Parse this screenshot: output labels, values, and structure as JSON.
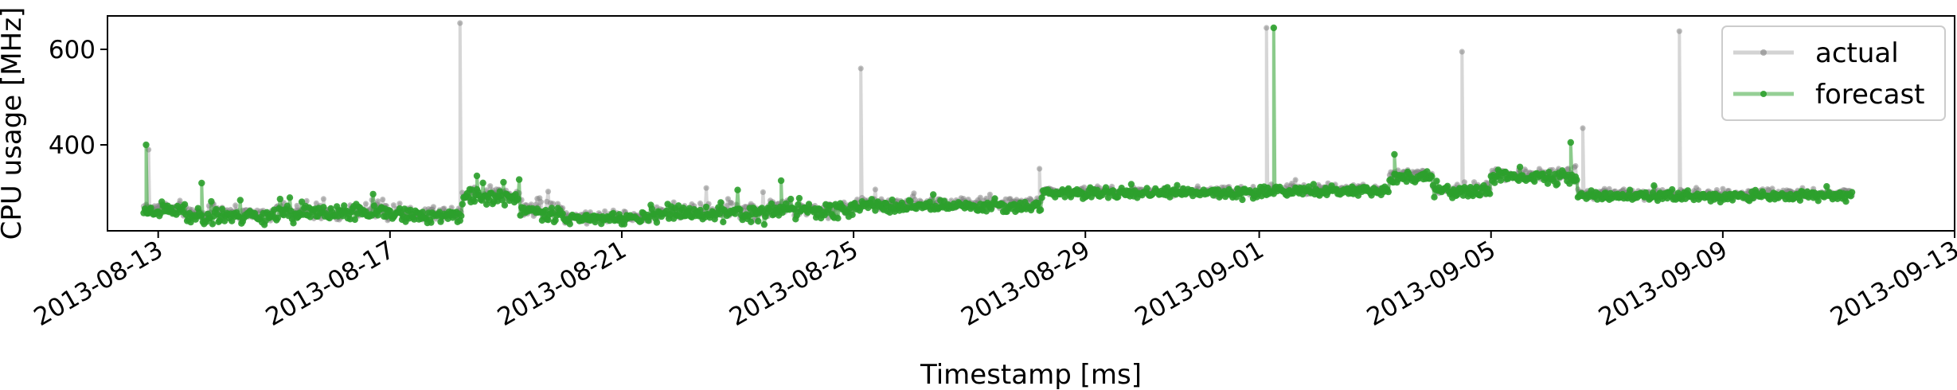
{
  "chart_data": {
    "type": "line",
    "title": "",
    "xlabel": "Timestamp [ms]",
    "ylabel": "CPU usage [MHz]",
    "xlim": [
      "2013-08-12T03:00",
      "2013-09-13T00:00"
    ],
    "ylim": [
      220,
      670
    ],
    "x_ticks": [
      "2013-08-13",
      "2013-08-17",
      "2013-08-21",
      "2013-08-25",
      "2013-08-29",
      "2013-09-01",
      "2013-09-05",
      "2013-09-09",
      "2013-09-13"
    ],
    "y_ticks": [
      400,
      600
    ],
    "grid": false,
    "legend_position": "top-right",
    "series": [
      {
        "name": "actual",
        "color": "#808080",
        "segments": [
          {
            "start": "2013-08-12T18:00",
            "end": "2013-08-13T12:00",
            "base": 268,
            "spread": 20
          },
          {
            "start": "2013-08-13T12:00",
            "end": "2013-08-15T00:00",
            "base": 258,
            "spread": 26
          },
          {
            "start": "2013-08-15T00:00",
            "end": "2013-08-17T00:00",
            "base": 262,
            "spread": 24
          },
          {
            "start": "2013-08-17T00:00",
            "end": "2013-08-18T06:00",
            "base": 258,
            "spread": 24
          },
          {
            "start": "2013-08-18T06:00",
            "end": "2013-08-19T06:00",
            "base": 298,
            "spread": 26
          },
          {
            "start": "2013-08-19T06:00",
            "end": "2013-08-20T00:00",
            "base": 266,
            "spread": 26
          },
          {
            "start": "2013-08-20T00:00",
            "end": "2013-08-21T12:00",
            "base": 250,
            "spread": 18
          },
          {
            "start": "2013-08-21T12:00",
            "end": "2013-08-23T12:00",
            "base": 262,
            "spread": 26
          },
          {
            "start": "2013-08-23T12:00",
            "end": "2013-08-25T00:00",
            "base": 268,
            "spread": 24
          },
          {
            "start": "2013-08-25T00:00",
            "end": "2013-08-28T06:00",
            "base": 278,
            "spread": 18
          },
          {
            "start": "2013-08-28T06:00",
            "end": "2013-09-01T00:00",
            "base": 303,
            "spread": 14
          },
          {
            "start": "2013-09-01T00:00",
            "end": "2013-09-03T06:00",
            "base": 308,
            "spread": 14
          },
          {
            "start": "2013-09-03T06:00",
            "end": "2013-09-04T00:00",
            "base": 338,
            "spread": 16
          },
          {
            "start": "2013-09-04T00:00",
            "end": "2013-09-05T00:00",
            "base": 308,
            "spread": 16
          },
          {
            "start": "2013-09-05T00:00",
            "end": "2013-09-06T12:00",
            "base": 338,
            "spread": 18
          },
          {
            "start": "2013-09-06T12:00",
            "end": "2013-09-11T06:00",
            "base": 298,
            "spread": 14
          }
        ],
        "spikes": [
          {
            "t": "2013-08-12T20:00",
            "y": 390
          },
          {
            "t": "2013-08-18T05:00",
            "y": 655
          },
          {
            "t": "2013-08-25T03:00",
            "y": 560
          },
          {
            "t": "2013-08-28T05:00",
            "y": 350
          },
          {
            "t": "2013-09-01T03:00",
            "y": 645
          },
          {
            "t": "2013-09-04T12:00",
            "y": 595
          },
          {
            "t": "2013-09-06T14:00",
            "y": 435
          },
          {
            "t": "2013-09-08T06:00",
            "y": 638
          }
        ]
      },
      {
        "name": "forecast",
        "color": "#2ca02c",
        "segments": [
          {
            "start": "2013-08-12T18:00",
            "end": "2013-08-13T12:00",
            "base": 262,
            "spread": 22
          },
          {
            "start": "2013-08-13T12:00",
            "end": "2013-08-15T00:00",
            "base": 252,
            "spread": 26
          },
          {
            "start": "2013-08-15T00:00",
            "end": "2013-08-17T00:00",
            "base": 256,
            "spread": 24
          },
          {
            "start": "2013-08-17T00:00",
            "end": "2013-08-18T06:00",
            "base": 252,
            "spread": 22
          },
          {
            "start": "2013-08-18T06:00",
            "end": "2013-08-19T06:00",
            "base": 292,
            "spread": 26
          },
          {
            "start": "2013-08-19T06:00",
            "end": "2013-08-20T00:00",
            "base": 260,
            "spread": 26
          },
          {
            "start": "2013-08-20T00:00",
            "end": "2013-08-21T12:00",
            "base": 246,
            "spread": 16
          },
          {
            "start": "2013-08-21T12:00",
            "end": "2013-08-23T12:00",
            "base": 256,
            "spread": 26
          },
          {
            "start": "2013-08-23T12:00",
            "end": "2013-08-25T00:00",
            "base": 262,
            "spread": 26
          },
          {
            "start": "2013-08-25T00:00",
            "end": "2013-08-28T06:00",
            "base": 272,
            "spread": 18
          },
          {
            "start": "2013-08-28T06:00",
            "end": "2013-09-01T00:00",
            "base": 299,
            "spread": 16
          },
          {
            "start": "2013-09-01T00:00",
            "end": "2013-09-03T06:00",
            "base": 304,
            "spread": 16
          },
          {
            "start": "2013-09-03T06:00",
            "end": "2013-09-04T00:00",
            "base": 332,
            "spread": 18
          },
          {
            "start": "2013-09-04T00:00",
            "end": "2013-09-05T00:00",
            "base": 302,
            "spread": 18
          },
          {
            "start": "2013-09-05T00:00",
            "end": "2013-09-06T12:00",
            "base": 334,
            "spread": 22
          },
          {
            "start": "2013-09-06T12:00",
            "end": "2013-09-11T06:00",
            "base": 293,
            "spread": 14
          }
        ],
        "spikes": [
          {
            "t": "2013-08-12T19:00",
            "y": 400
          },
          {
            "t": "2013-08-13T18:00",
            "y": 320
          },
          {
            "t": "2013-08-18T12:00",
            "y": 335
          },
          {
            "t": "2013-08-23T18:00",
            "y": 325
          },
          {
            "t": "2013-09-01T06:00",
            "y": 645
          },
          {
            "t": "2013-09-03T08:00",
            "y": 380
          },
          {
            "t": "2013-09-06T09:00",
            "y": 405
          }
        ]
      }
    ]
  }
}
